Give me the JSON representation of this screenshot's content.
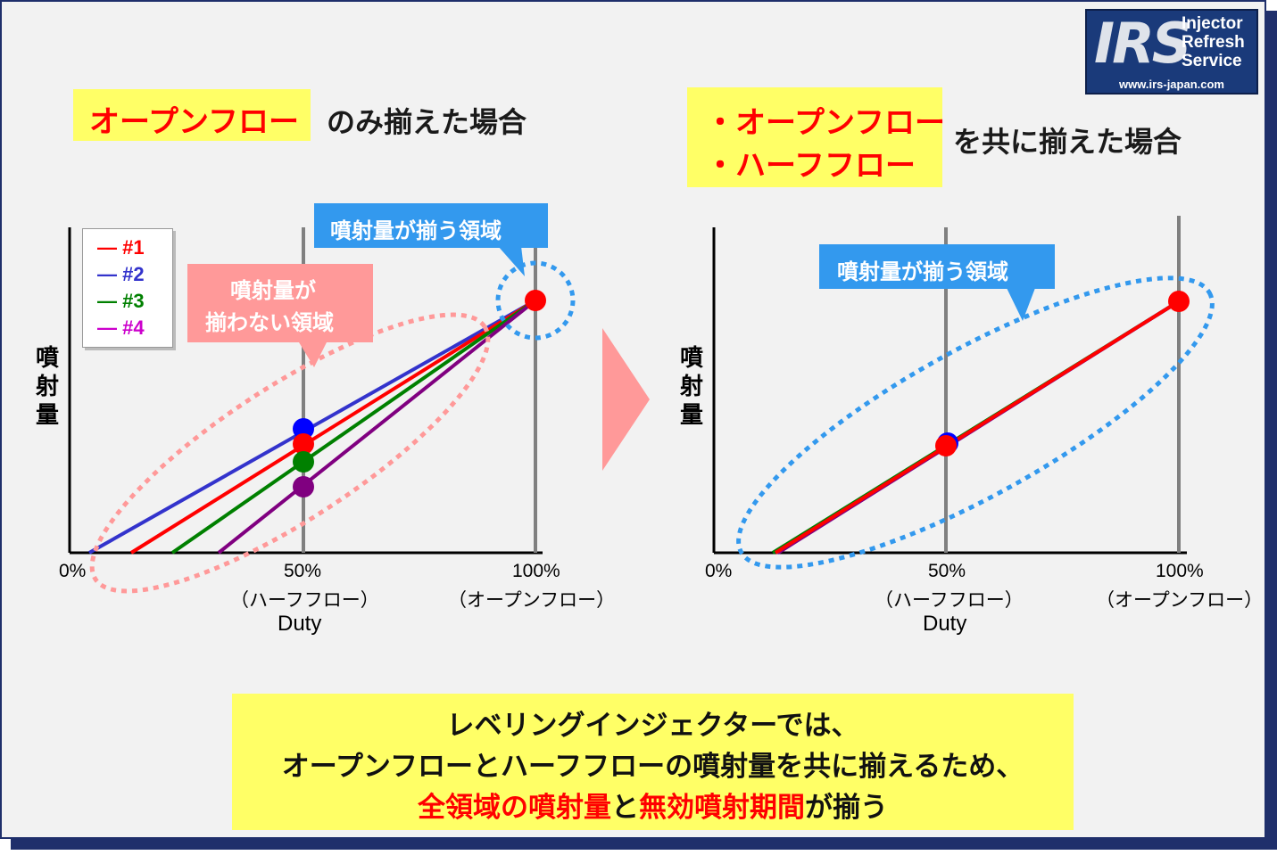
{
  "logo": {
    "letters": "IRS",
    "words": [
      "Injector",
      "Refresh",
      "Service"
    ],
    "url": "www.irs-japan.com"
  },
  "left_heading": {
    "highlight": "オープンフロー",
    "suffix": "のみ揃えた場合"
  },
  "right_heading": {
    "items": [
      "・オープンフロー",
      "・ハーフフロー"
    ],
    "suffix": "を共に揃えた場合"
  },
  "legend": {
    "items": [
      {
        "label": "— #1",
        "color": "#ff0000"
      },
      {
        "label": "— #2",
        "color": "#3333cc"
      },
      {
        "label": "— #3",
        "color": "#008000"
      },
      {
        "label": "— #4",
        "color": "#cc00cc"
      }
    ]
  },
  "callouts": {
    "left_match": "噴射量が揃う領域",
    "left_mismatch_line1": "噴射量が",
    "left_mismatch_line2": "揃わない領域",
    "right_match": "噴射量が揃う領域"
  },
  "axes": {
    "ylabel": "噴射量",
    "xlabel": "Duty",
    "tick_0": "0%",
    "tick_50": "50%",
    "tick_50_sub": "（ハーフフロー）",
    "tick_100": "100%",
    "tick_100_sub": "（オープンフロー）"
  },
  "colors": {
    "red": "#ff0000",
    "blue": "#3333cc",
    "green": "#008000",
    "purple": "#800080",
    "yellow": "#ffff66",
    "callout_blue": "#3399ee",
    "callout_pink": "#ff9999"
  },
  "conclusion": {
    "line1": "レベリングインジェクターでは、",
    "line2": "オープンフローとハーフフローの噴射量を共に揃えるため、",
    "line3_red1": "全領域の噴射量",
    "line3_black1": "と",
    "line3_red2": "無効噴射期間",
    "line3_black2": "が揃う"
  }
}
